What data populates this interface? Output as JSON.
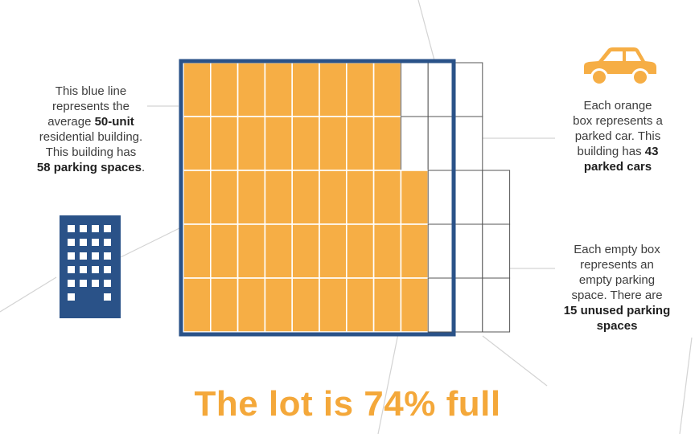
{
  "colors": {
    "orange": "#f6ae45",
    "blue_line": "#2a5288",
    "grid_line": "#555555",
    "headline": "#f4a83a"
  },
  "notes": {
    "left": {
      "line1": "This blue line",
      "line2": "represents the",
      "line3_pre": "average ",
      "line3_bold": "50-unit",
      "line4": "residential building.",
      "line5": "This building has",
      "line6_bold": "58 parking spaces",
      "line6_post": "."
    },
    "car": {
      "line1": "Each orange",
      "line2": "box represents a",
      "line3": "parked car. This",
      "line4_pre": "building has ",
      "line4_bold": "43",
      "line5_bold": "parked cars"
    },
    "empty": {
      "line1": "Each empty box",
      "line2": "represents an",
      "line3": "empty parking",
      "line4": "space. There are",
      "line5_bold": "15 unused parking",
      "line6_bold": "spaces"
    }
  },
  "icons": {
    "car": "car-icon",
    "building": "apartment-building-icon"
  },
  "diagram": {
    "total_spaces": 58,
    "parked_cars": 43,
    "unused_spaces": 15,
    "occupancy_percent": 74
  },
  "headline": "The lot is 74% full"
}
